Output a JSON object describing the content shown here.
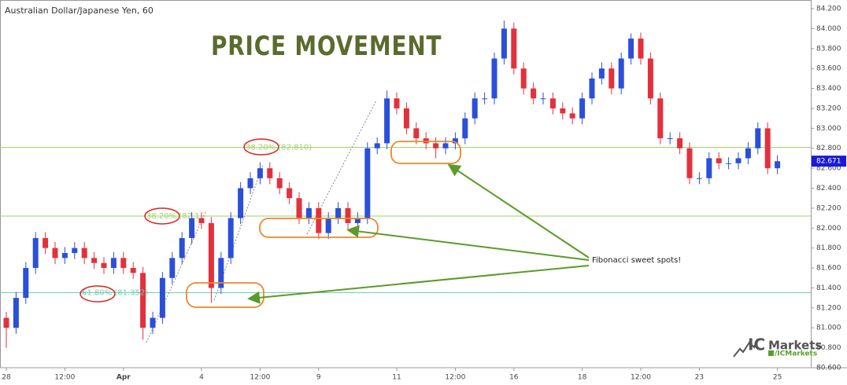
{
  "chart_data": {
    "type": "candlestick",
    "title": "PRICE MOVEMENT",
    "subtitle": "Australian Dollar/Japanese Yen, 60",
    "annotation": "Fibonacci sweet spots!",
    "logo": {
      "prefix": "IC",
      "brand": "Markets",
      "handle": "/ICMarkets"
    },
    "up_color": "#2b4fd8",
    "down_color": "#e2313d",
    "ylim": [
      80.6,
      84.2
    ],
    "yticks": [
      {
        "value": 80.6,
        "label": "80.600"
      },
      {
        "value": 80.8,
        "label": "80.800"
      },
      {
        "value": 81.0,
        "label": "81.000"
      },
      {
        "value": 81.2,
        "label": "81.200"
      },
      {
        "value": 81.4,
        "label": "81.400"
      },
      {
        "value": 81.6,
        "label": "81.600"
      },
      {
        "value": 81.8,
        "label": "81.800"
      },
      {
        "value": 82.0,
        "label": "82.000"
      },
      {
        "value": 82.2,
        "label": "82.200"
      },
      {
        "value": 82.4,
        "label": "82.400"
      },
      {
        "value": 82.6,
        "label": "82.600"
      },
      {
        "value": 82.8,
        "label": "82.800"
      },
      {
        "value": 83.0,
        "label": "83.000"
      },
      {
        "value": 83.2,
        "label": "83.200"
      },
      {
        "value": 83.4,
        "label": "83.400"
      },
      {
        "value": 83.6,
        "label": "83.600"
      },
      {
        "value": 83.8,
        "label": "83.800"
      },
      {
        "value": 84.0,
        "label": "84.000"
      },
      {
        "value": 84.2,
        "label": "84.200"
      }
    ],
    "last_price": 82.671,
    "last_price_color": "#1a1adc",
    "fib_levels": [
      {
        "text": "38.20% (82.810)",
        "value": 82.81,
        "color": "#9fd36a"
      },
      {
        "text": "38.20% (82.1",
        "value": 82.12,
        "color": "#9fd36a"
      },
      {
        "text": "61.80% (81.352)",
        "value": 81.352,
        "color": "#6fcfb0"
      }
    ],
    "categories": [
      "28",
      null,
      null,
      null,
      null,
      null,
      "12:00",
      null,
      null,
      null,
      null,
      null,
      "Apr",
      null,
      null,
      null,
      null,
      null,
      null,
      null,
      "4",
      null,
      null,
      null,
      null,
      null,
      "12:00",
      null,
      null,
      null,
      null,
      null,
      "9",
      null,
      null,
      null,
      null,
      null,
      null,
      null,
      "11",
      null,
      null,
      null,
      null,
      null,
      "12:00",
      null,
      null,
      null,
      null,
      null,
      "16",
      null,
      null,
      null,
      null,
      null,
      null,
      "18",
      null,
      null,
      null,
      null,
      null,
      "12:00",
      null,
      null,
      null,
      null,
      null,
      "23",
      null,
      null,
      null,
      null,
      null,
      null,
      null,
      "25"
    ],
    "open": [
      81.1,
      81.0,
      81.3,
      81.6,
      81.9,
      81.8,
      81.7,
      81.75,
      81.8,
      81.7,
      81.65,
      81.6,
      81.7,
      81.6,
      81.55,
      81.0,
      81.1,
      81.5,
      81.7,
      81.9,
      82.1,
      82.05,
      81.4,
      81.7,
      82.1,
      82.4,
      82.5,
      82.6,
      82.5,
      82.4,
      82.3,
      82.1,
      82.2,
      81.95,
      82.1,
      82.2,
      82.05,
      82.1,
      82.8,
      82.85,
      83.3,
      83.2,
      83.0,
      82.9,
      82.85,
      82.8,
      82.85,
      82.9,
      83.1,
      83.3,
      83.3,
      83.7,
      84.0,
      83.6,
      83.4,
      83.3,
      83.3,
      83.2,
      83.15,
      83.1,
      83.3,
      83.5,
      83.6,
      83.4,
      83.7,
      83.9,
      83.7,
      83.3,
      82.9,
      82.9,
      82.8,
      82.5,
      82.5,
      82.7,
      82.65,
      82.65,
      82.7,
      82.8,
      83.0,
      82.6
    ],
    "high": [
      81.16,
      81.36,
      81.66,
      81.96,
      81.96,
      81.86,
      81.81,
      81.86,
      81.86,
      81.76,
      81.71,
      81.76,
      81.76,
      81.66,
      81.61,
      81.16,
      81.56,
      81.76,
      81.96,
      82.16,
      82.16,
      82.11,
      81.76,
      82.16,
      82.46,
      82.56,
      82.66,
      82.66,
      82.56,
      82.46,
      82.36,
      82.26,
      82.26,
      82.16,
      82.26,
      82.26,
      82.16,
      82.86,
      82.91,
      83.38,
      83.36,
      83.26,
      83.06,
      82.96,
      82.91,
      82.91,
      82.96,
      83.16,
      83.36,
      83.36,
      83.76,
      84.08,
      84.06,
      83.66,
      83.46,
      83.36,
      83.36,
      83.26,
      83.21,
      83.36,
      83.56,
      83.66,
      83.66,
      83.76,
      83.95,
      83.96,
      83.76,
      83.36,
      82.96,
      82.96,
      82.86,
      82.56,
      82.76,
      82.76,
      82.71,
      82.76,
      82.86,
      83.06,
      83.06,
      82.73
    ],
    "low": [
      80.8,
      80.94,
      81.24,
      81.54,
      81.74,
      81.64,
      81.64,
      81.69,
      81.64,
      81.59,
      81.54,
      81.54,
      81.54,
      81.49,
      80.88,
      80.94,
      81.04,
      81.44,
      81.64,
      81.84,
      81.99,
      81.25,
      81.34,
      81.64,
      82.04,
      82.34,
      82.44,
      82.44,
      82.34,
      82.24,
      82.04,
      82.04,
      81.89,
      81.89,
      82.04,
      81.99,
      81.99,
      82.04,
      82.74,
      82.79,
      83.14,
      82.94,
      82.84,
      82.79,
      82.7,
      82.74,
      82.79,
      82.84,
      83.04,
      83.24,
      83.24,
      83.64,
      83.54,
      83.34,
      83.24,
      83.24,
      83.14,
      83.09,
      83.04,
      83.04,
      83.24,
      83.44,
      83.34,
      83.34,
      83.64,
      83.64,
      83.24,
      82.84,
      82.84,
      82.74,
      82.44,
      82.44,
      82.44,
      82.59,
      82.59,
      82.59,
      82.64,
      82.74,
      82.54,
      82.54
    ],
    "close": [
      81.0,
      81.3,
      81.6,
      81.9,
      81.8,
      81.7,
      81.75,
      81.8,
      81.7,
      81.65,
      81.6,
      81.7,
      81.6,
      81.55,
      81.0,
      81.1,
      81.5,
      81.7,
      81.9,
      82.1,
      82.05,
      81.4,
      81.7,
      82.1,
      82.4,
      82.5,
      82.6,
      82.5,
      82.4,
      82.3,
      82.1,
      82.2,
      81.95,
      82.1,
      82.2,
      82.05,
      82.1,
      82.8,
      82.85,
      83.3,
      83.2,
      83.0,
      82.9,
      82.85,
      82.8,
      82.85,
      82.9,
      83.1,
      83.3,
      83.3,
      83.7,
      84.0,
      83.6,
      83.4,
      83.3,
      83.3,
      83.2,
      83.15,
      83.1,
      83.3,
      83.5,
      83.6,
      83.4,
      83.7,
      83.9,
      83.7,
      83.3,
      82.9,
      82.9,
      82.8,
      82.5,
      82.5,
      82.7,
      82.65,
      82.65,
      82.7,
      82.8,
      83.0,
      82.6,
      82.67
    ]
  }
}
